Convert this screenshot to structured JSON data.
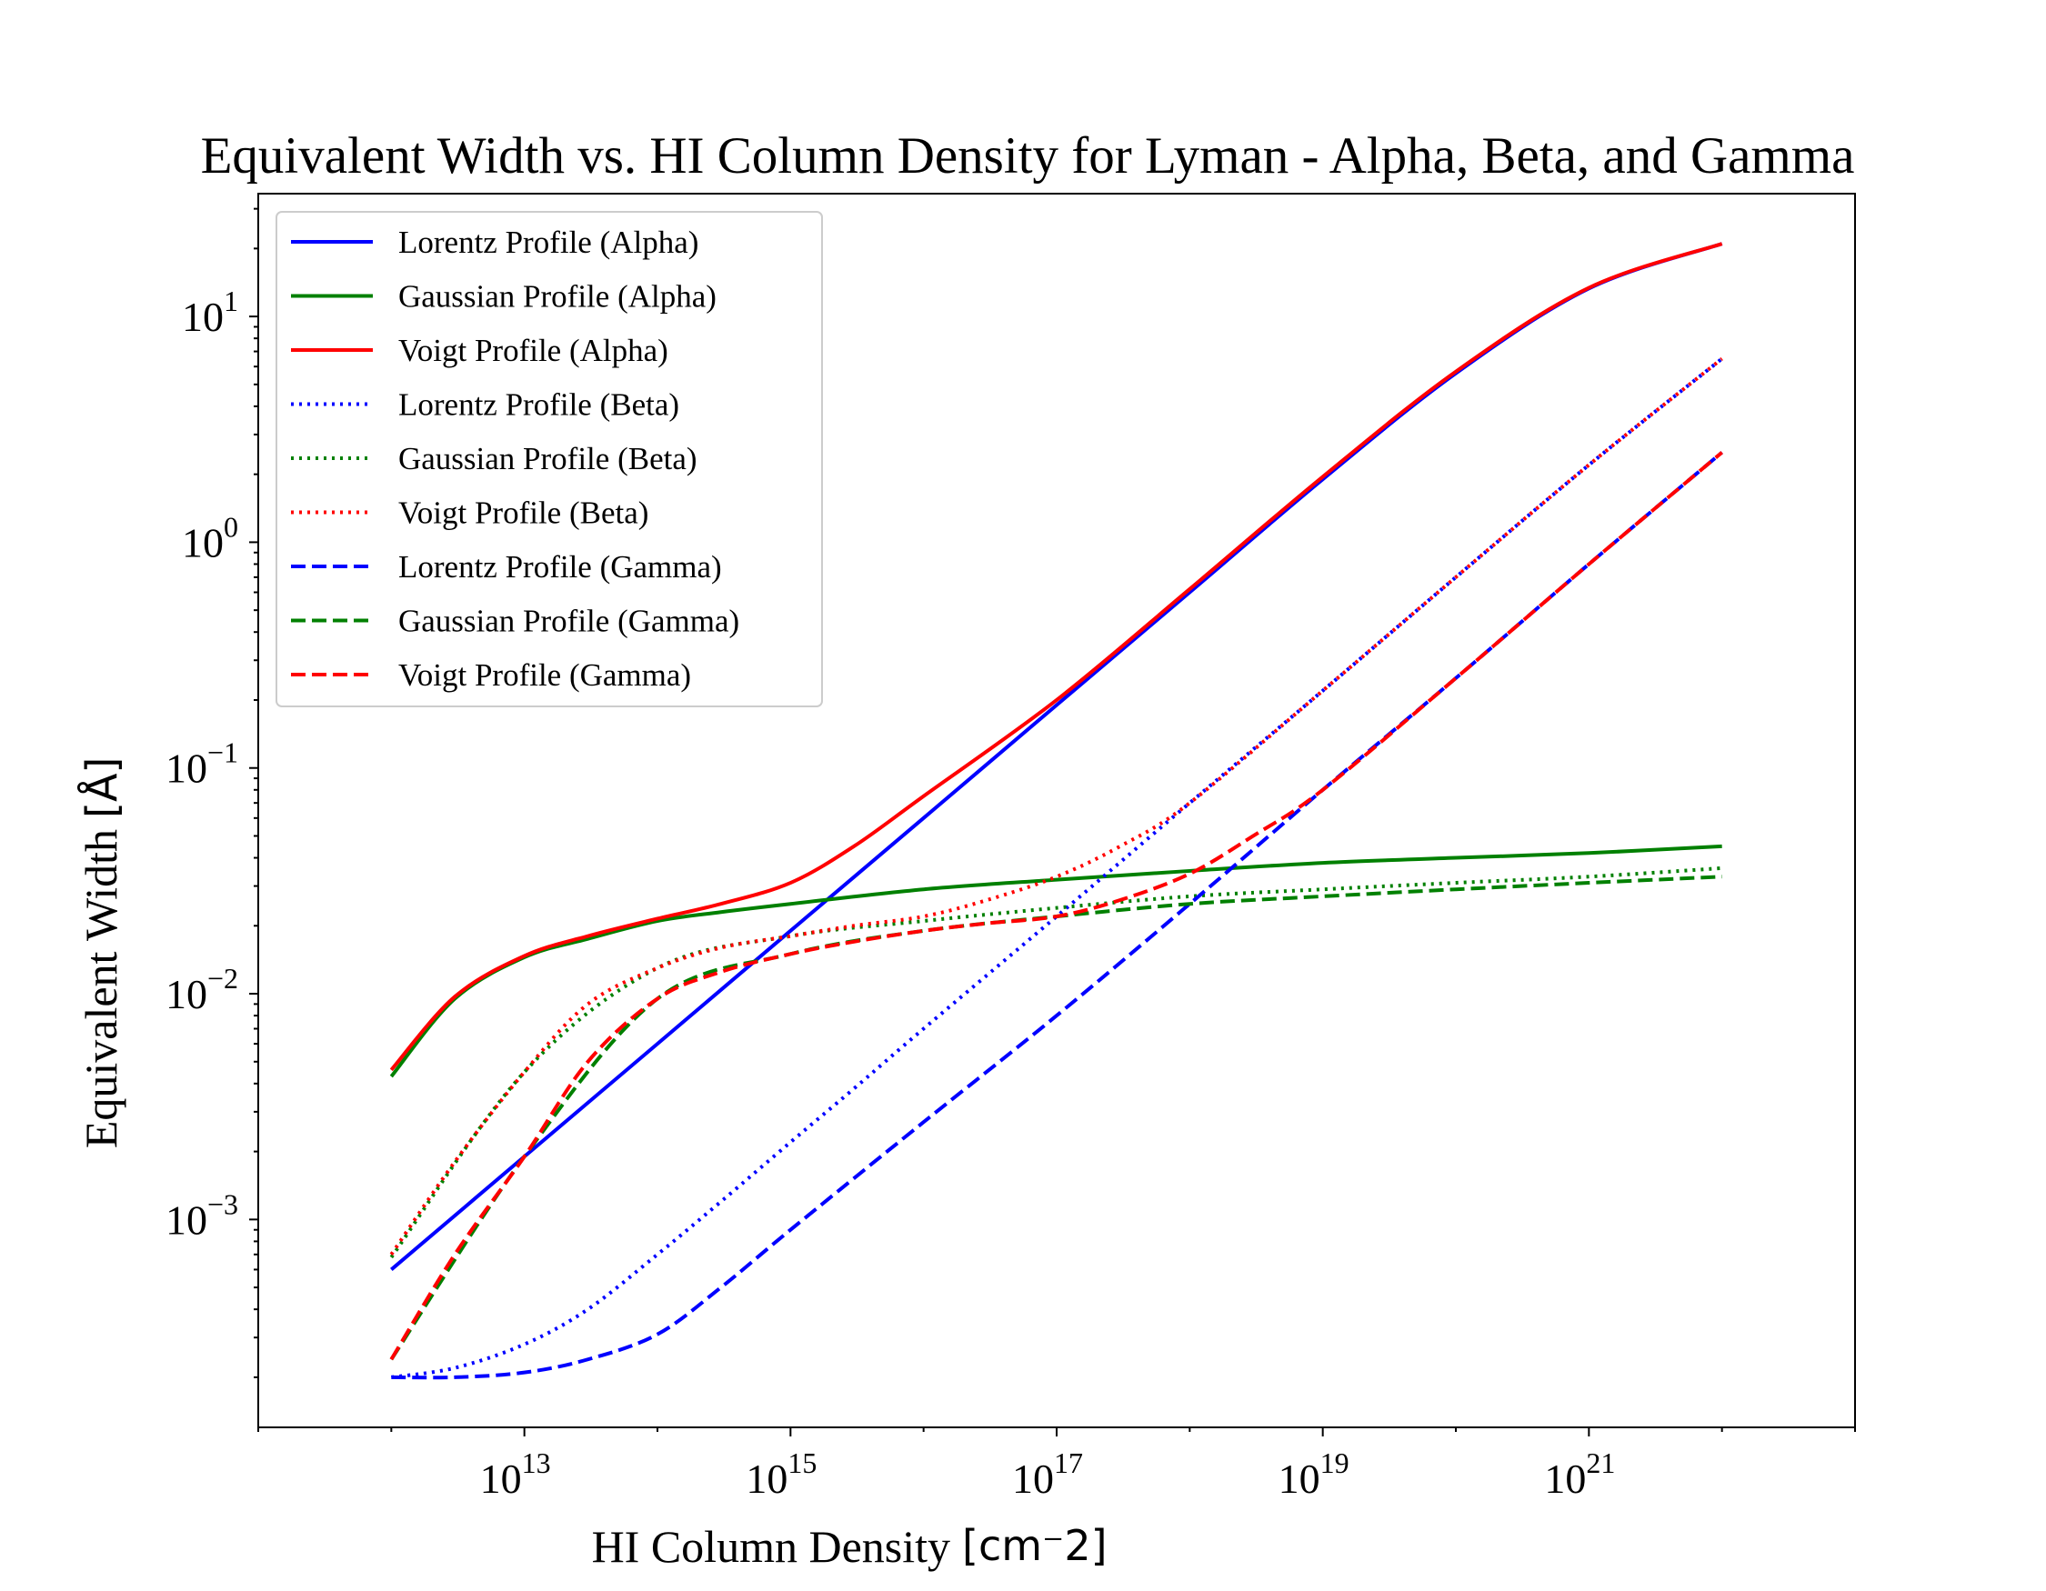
{
  "chart_data": {
    "type": "line",
    "title": "Equivalent Width vs. HI Column Density for Lyman - Alpha, Beta, and Gamma",
    "xlabel": "HI Column Density",
    "xlabel_unit": "[cm⁻2]",
    "ylabel": "Equivalent Width",
    "ylabel_unit": "[Å]",
    "xscale": "log",
    "yscale": "log",
    "xlim": [
      100000000000.0,
      1e+23
    ],
    "ylim": [
      0.00012,
      35
    ],
    "x_ticks": [
      {
        "base": "10",
        "exp": "13",
        "value": 10000000000000.0
      },
      {
        "base": "10",
        "exp": "15",
        "value": 1000000000000000.0
      },
      {
        "base": "10",
        "exp": "17",
        "value": 1e+17
      },
      {
        "base": "10",
        "exp": "19",
        "value": 1e+19
      },
      {
        "base": "10",
        "exp": "21",
        "value": 1e+21
      }
    ],
    "y_ticks": [
      {
        "base": "10",
        "exp": "−3",
        "value": 0.001
      },
      {
        "base": "10",
        "exp": "−2",
        "value": 0.01
      },
      {
        "base": "10",
        "exp": "−1",
        "value": 0.1
      },
      {
        "base": "10",
        "exp": "0",
        "value": 1
      },
      {
        "base": "10",
        "exp": "1",
        "value": 10
      }
    ],
    "legend_position": "upper-left",
    "grid": false,
    "series": [
      {
        "name": "Lorentz Profile (Alpha)",
        "color": "#0000ff",
        "linestyle": "solid",
        "x": [
          1000000000000.0,
          10000000000000.0,
          100000000000000.0,
          1000000000000000.0,
          1e+16,
          1e+17,
          1e+18,
          1e+19,
          1e+20,
          1e+21,
          1e+22
        ],
        "y": [
          0.0006,
          0.0019,
          0.006,
          0.019,
          0.06,
          0.19,
          0.6,
          1.9,
          5.6,
          13.3,
          21
        ]
      },
      {
        "name": "Gaussian Profile (Alpha)",
        "color": "#008000",
        "linestyle": "solid",
        "x": [
          1000000000000.0,
          3000000000000.0,
          10000000000000.0,
          30000000000000.0,
          100000000000000.0,
          300000000000000.0,
          1000000000000000.0,
          1e+16,
          1e+17,
          1e+18,
          1e+19,
          1e+20,
          1e+21,
          1e+22
        ],
        "y": [
          0.0043,
          0.0095,
          0.0145,
          0.0175,
          0.021,
          0.023,
          0.025,
          0.029,
          0.032,
          0.035,
          0.038,
          0.04,
          0.042,
          0.045
        ]
      },
      {
        "name": "Voigt Profile (Alpha)",
        "color": "#ff0000",
        "linestyle": "solid",
        "x": [
          1000000000000.0,
          3000000000000.0,
          10000000000000.0,
          30000000000000.0,
          100000000000000.0,
          300000000000000.0,
          1000000000000000.0,
          3000000000000000.0,
          1e+16,
          1e+17,
          1e+18,
          1e+19,
          1e+20,
          1e+21,
          1e+22
        ],
        "y": [
          0.0046,
          0.0097,
          0.0147,
          0.018,
          0.0215,
          0.025,
          0.031,
          0.045,
          0.075,
          0.2,
          0.62,
          1.95,
          5.7,
          13.4,
          21
        ]
      },
      {
        "name": "Lorentz Profile (Beta)",
        "color": "#0000ff",
        "linestyle": "dotted",
        "x": [
          1000000000000.0,
          3000000000000.0,
          10000000000000.0,
          30000000000000.0,
          100000000000000.0,
          300000000000000.0,
          1000000000000000.0,
          3000000000000000.0,
          1e+16,
          1e+17,
          1e+18,
          1e+19,
          1e+20,
          1e+21,
          1e+22
        ],
        "y": [
          0.0002,
          0.00022,
          0.00028,
          0.0004,
          0.0007,
          0.0012,
          0.0022,
          0.0038,
          0.007,
          0.022,
          0.07,
          0.22,
          0.7,
          2.2,
          6.5
        ]
      },
      {
        "name": "Gaussian Profile (Beta)",
        "color": "#008000",
        "linestyle": "dotted",
        "x": [
          1000000000000.0,
          10000000000000.0,
          100000000000000.0,
          1000000000000000.0,
          1e+16,
          1e+17,
          1e+18,
          1e+19,
          1e+20,
          1e+21,
          1e+22
        ],
        "y": [
          0.00068,
          0.0045,
          0.013,
          0.018,
          0.021,
          0.024,
          0.027,
          0.029,
          0.031,
          0.033,
          0.036
        ]
      },
      {
        "name": "Voigt Profile (Beta)",
        "color": "#ff0000",
        "linestyle": "dotted",
        "x": [
          1000000000000.0,
          3000000000000.0,
          10000000000000.0,
          30000000000000.0,
          100000000000000.0,
          300000000000000.0,
          1000000000000000.0,
          3000000000000000.0,
          1e+16,
          3e+16,
          1e+17,
          3e+17,
          1e+18,
          1e+19,
          1e+20,
          1e+21,
          1e+22
        ],
        "y": [
          0.0007,
          0.0018,
          0.0045,
          0.009,
          0.013,
          0.016,
          0.018,
          0.02,
          0.022,
          0.026,
          0.033,
          0.045,
          0.07,
          0.22,
          0.7,
          2.2,
          6.5
        ]
      },
      {
        "name": "Lorentz Profile (Gamma)",
        "color": "#0000ff",
        "linestyle": "dashed",
        "x": [
          1000000000000.0,
          3000000000000.0,
          10000000000000.0,
          30000000000000.0,
          100000000000000.0,
          300000000000000.0,
          1000000000000000.0,
          1e+16,
          1e+17,
          1e+18,
          1e+19,
          1e+20,
          1e+21,
          1e+22
        ],
        "y": [
          0.0002,
          0.0002,
          0.00021,
          0.00024,
          0.00031,
          0.0005,
          0.0009,
          0.0027,
          0.008,
          0.025,
          0.08,
          0.25,
          0.8,
          2.5
        ]
      },
      {
        "name": "Gaussian Profile (Gamma)",
        "color": "#008000",
        "linestyle": "dashed",
        "x": [
          1000000000000.0,
          10000000000000.0,
          100000000000000.0,
          1000000000000000.0,
          1e+16,
          1e+17,
          1e+18,
          1e+19,
          1e+20,
          1e+21,
          1e+22
        ],
        "y": [
          0.00024,
          0.0019,
          0.0095,
          0.015,
          0.019,
          0.022,
          0.025,
          0.027,
          0.029,
          0.031,
          0.033
        ]
      },
      {
        "name": "Voigt Profile (Gamma)",
        "color": "#ff0000",
        "linestyle": "dashed",
        "x": [
          1000000000000.0,
          3000000000000.0,
          10000000000000.0,
          30000000000000.0,
          100000000000000.0,
          300000000000000.0,
          1000000000000000.0,
          3000000000000000.0,
          1e+16,
          3e+16,
          1e+17,
          3e+17,
          1e+18,
          3e+18,
          1e+19,
          1e+20,
          1e+21,
          1e+22
        ],
        "y": [
          0.00024,
          0.0007,
          0.0019,
          0.005,
          0.0095,
          0.0125,
          0.015,
          0.017,
          0.019,
          0.0205,
          0.022,
          0.026,
          0.034,
          0.05,
          0.08,
          0.25,
          0.8,
          2.5
        ]
      }
    ]
  }
}
